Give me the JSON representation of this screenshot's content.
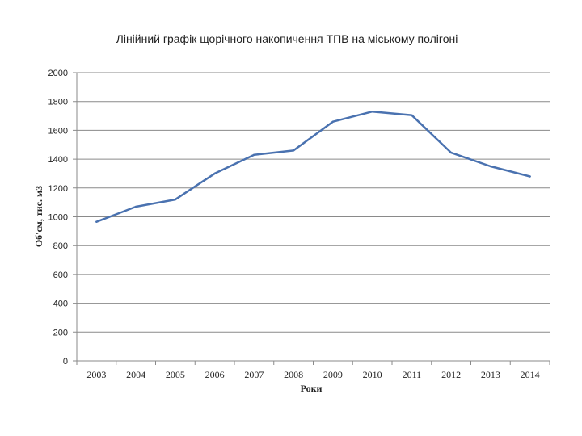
{
  "chart_data": {
    "type": "line",
    "title": "Лінійний графік щорічного накопичення ТПВ на міському полігоні",
    "xlabel": "Роки",
    "ylabel": "Об'єм, тис. м3",
    "categories": [
      "2003",
      "2004",
      "2005",
      "2006",
      "2007",
      "2008",
      "2009",
      "2010",
      "2011",
      "2012",
      "2013",
      "2014"
    ],
    "series": [
      {
        "name": "Об'єм",
        "color": "#4a72b0",
        "values": [
          965,
          1070,
          1120,
          1300,
          1430,
          1460,
          1660,
          1730,
          1705,
          1445,
          1350,
          1280
        ]
      }
    ],
    "ylim": [
      0,
      2000
    ],
    "yticks": [
      "0",
      "200",
      "400",
      "600",
      "800",
      "1000",
      "1200",
      "1400",
      "1600",
      "1800",
      "2000"
    ],
    "grid": true,
    "legend": "none"
  }
}
